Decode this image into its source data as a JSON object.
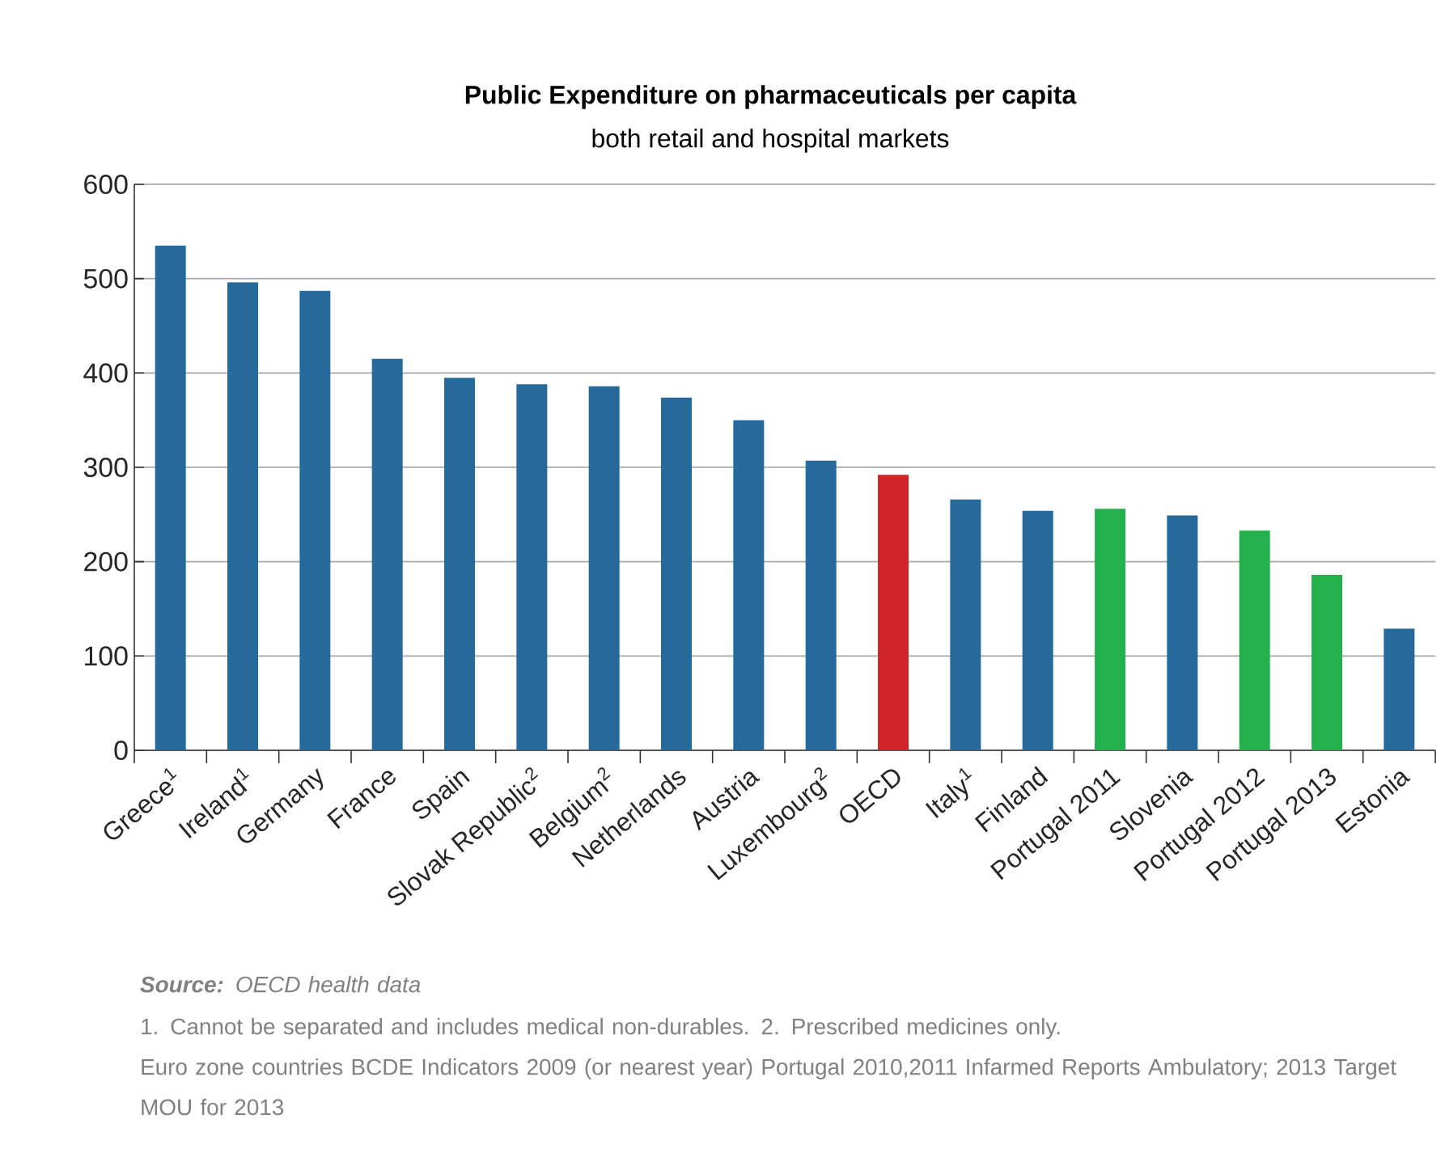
{
  "chart_data": {
    "type": "bar",
    "title": "Public Expenditure on pharmaceuticals per capita",
    "subtitle": "both retail and hospital markets",
    "categories": [
      "Greece$^{1}$",
      "Ireland$^{1}$",
      "Germany",
      "France",
      "Spain",
      "Slovak Republic$^{2}$",
      "Belgium$^{2}$",
      "Netherlands",
      "Austria",
      "Luxembourg$^{2}$",
      "OECD",
      "Italy$^{1}$",
      "Finland",
      "Portugal 2011",
      "Slovenia",
      "Portugal 2012",
      "Portugal 2013",
      "Estonia"
    ],
    "values": [
      535,
      496,
      487,
      415,
      395,
      388,
      386,
      374,
      350,
      307,
      292,
      266,
      254,
      256,
      249,
      233,
      186,
      129
    ],
    "colors": [
      "#266a9b",
      "#266a9b",
      "#266a9b",
      "#266a9b",
      "#266a9b",
      "#266a9b",
      "#266a9b",
      "#266a9b",
      "#266a9b",
      "#266a9b",
      "#d0242b",
      "#266a9b",
      "#266a9b",
      "#24b04c",
      "#266a9b",
      "#24b04c",
      "#24b04c",
      "#266a9b"
    ],
    "ylim": [
      0,
      600
    ],
    "yticks": [
      0,
      100,
      200,
      300,
      400,
      500,
      600
    ],
    "grid": "y",
    "annotations": [
      "**Source:** OECD health data",
      "1. Cannot be separated and includes medical non-durables. 2. Prescribed medicines only.",
      "Euro zone countries BCDE Indicators 2009 (or nearest year) Portugal 2010,2011 Infarmed Reports Ambulatory; 2013 Target MOU for 2013"
    ]
  }
}
